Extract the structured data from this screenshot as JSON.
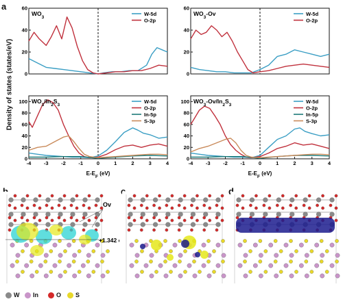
{
  "panel_labels": {
    "a": "a",
    "b": "b",
    "c": "c",
    "d": "d"
  },
  "y_axis_label": "Density of states (states/eV)",
  "colors": {
    "W-5d": "#3a9ec4",
    "O-2p": "#c0303c",
    "In-5p": "#1d7a78",
    "S-3p": "#c98a5a"
  },
  "chart_data": [
    {
      "type": "line",
      "title": "WO3",
      "xlabel": "",
      "ylabel": "",
      "xlim": [
        -4,
        4
      ],
      "ylim": [
        0,
        60
      ],
      "yticks": [
        0,
        20,
        40,
        60
      ],
      "xticks": [],
      "fermi_line": 0,
      "series": [
        {
          "name": "W-5d",
          "x": [
            -4,
            -3.5,
            -3,
            -2.5,
            -2,
            -1.5,
            -1,
            -0.5,
            0,
            0.3,
            0.8,
            1.3,
            1.8,
            2.3,
            2.8,
            3.1,
            3.4,
            3.7,
            4
          ],
          "y": [
            14,
            10,
            6,
            5,
            4,
            3,
            2,
            1,
            0,
            1,
            2,
            2,
            3,
            3,
            8,
            18,
            24,
            22,
            20
          ]
        },
        {
          "name": "O-2p",
          "x": [
            -4,
            -3.7,
            -3.4,
            -3,
            -2.7,
            -2.4,
            -2.1,
            -1.8,
            -1.5,
            -1.2,
            -0.9,
            -0.6,
            -0.3,
            0,
            0.5,
            1,
            1.5,
            2,
            2.5,
            3,
            3.5,
            4
          ],
          "y": [
            30,
            38,
            32,
            26,
            34,
            44,
            32,
            52,
            42,
            25,
            12,
            4,
            1,
            0,
            1,
            2,
            2,
            3,
            3,
            5,
            8,
            7
          ]
        }
      ]
    },
    {
      "type": "line",
      "title": "WO3-Ov",
      "xlabel": "",
      "ylabel": "",
      "xlim": [
        -4,
        4
      ],
      "ylim": [
        0,
        60
      ],
      "yticks": [
        0,
        20,
        40,
        60
      ],
      "xticks": [],
      "fermi_line": 0,
      "series": [
        {
          "name": "W-5d",
          "x": [
            -4,
            -3.5,
            -3,
            -2.5,
            -2,
            -1.5,
            -1,
            -0.5,
            0,
            0.5,
            1,
            1.5,
            2,
            2.5,
            3,
            3.5,
            4
          ],
          "y": [
            6,
            4,
            3,
            2,
            2,
            1,
            1,
            1,
            4,
            8,
            16,
            18,
            22,
            20,
            18,
            16,
            18
          ]
        },
        {
          "name": "O-2p",
          "x": [
            -4,
            -3.7,
            -3.4,
            -3.1,
            -2.8,
            -2.5,
            -2.2,
            -1.9,
            -1.6,
            -1.3,
            -1,
            -0.7,
            -0.4,
            0,
            0.5,
            1,
            1.5,
            2,
            2.5,
            3,
            3.5,
            4
          ],
          "y": [
            32,
            40,
            36,
            38,
            44,
            40,
            34,
            38,
            30,
            20,
            12,
            4,
            1,
            2,
            3,
            5,
            7,
            8,
            9,
            8,
            7,
            6
          ]
        }
      ]
    },
    {
      "type": "line",
      "title": "WO3/In2S3",
      "xlabel": "E-EF (eV)",
      "ylabel": "",
      "xlim": [
        -4,
        4
      ],
      "ylim": [
        0,
        110
      ],
      "yticks": [
        0,
        20,
        40,
        60,
        80,
        100
      ],
      "xticks": [
        -4,
        -3,
        -2,
        -1,
        0,
        1,
        2,
        3,
        4
      ],
      "fermi_line": 0,
      "series": [
        {
          "name": "W-5d",
          "x": [
            -4,
            -3.5,
            -3,
            -2.5,
            -2,
            -1.5,
            -1,
            -0.5,
            0,
            0.5,
            1,
            1.5,
            2,
            2.3,
            2.6,
            3,
            3.5,
            4
          ],
          "y": [
            10,
            8,
            6,
            5,
            4,
            3,
            3,
            2,
            5,
            15,
            30,
            46,
            54,
            50,
            45,
            42,
            36,
            38
          ]
        },
        {
          "name": "O-2p",
          "x": [
            -4,
            -3.8,
            -3.5,
            -3.2,
            -2.9,
            -2.6,
            -2.3,
            -2,
            -1.7,
            -1.4,
            -1.1,
            -0.8,
            -0.5,
            0,
            0.5,
            1,
            1.5,
            2,
            2.5,
            3,
            3.5,
            4
          ],
          "y": [
            65,
            55,
            75,
            95,
            103,
            98,
            85,
            60,
            40,
            22,
            10,
            4,
            2,
            3,
            8,
            16,
            22,
            24,
            20,
            24,
            26,
            22
          ]
        },
        {
          "name": "In-5p",
          "x": [
            -4,
            -3,
            -2,
            -1,
            0,
            1,
            2,
            3,
            4
          ],
          "y": [
            3,
            3,
            4,
            4,
            1,
            3,
            5,
            6,
            5
          ]
        },
        {
          "name": "S-3p",
          "x": [
            -4,
            -3.5,
            -3,
            -2.5,
            -2,
            -1.7,
            -1.4,
            -1.1,
            -0.8,
            -0.5,
            0,
            0.5,
            1,
            1.5,
            2,
            2.5,
            3,
            3.5,
            4
          ],
          "y": [
            15,
            20,
            22,
            30,
            38,
            40,
            30,
            18,
            8,
            4,
            2,
            3,
            4,
            5,
            6,
            7,
            8,
            8,
            7
          ]
        }
      ]
    },
    {
      "type": "line",
      "title": "WO3-Ov/In2S3",
      "xlabel": "E-EF (eV)",
      "ylabel": "",
      "xlim": [
        -4,
        4
      ],
      "ylim": [
        0,
        110
      ],
      "yticks": [
        0,
        20,
        40,
        60,
        80,
        100
      ],
      "xticks": [
        -4,
        -3,
        -2,
        -1,
        0,
        1,
        2,
        3,
        4
      ],
      "fermi_line": 0,
      "series": [
        {
          "name": "W-5d",
          "x": [
            -4,
            -3.5,
            -3,
            -2.5,
            -2,
            -1.5,
            -1,
            -0.5,
            0,
            0.5,
            1,
            1.5,
            2,
            2.3,
            2.6,
            3,
            3.5,
            4
          ],
          "y": [
            10,
            8,
            6,
            5,
            4,
            3,
            3,
            2,
            6,
            20,
            34,
            40,
            52,
            54,
            48,
            44,
            40,
            42
          ]
        },
        {
          "name": "O-2p",
          "x": [
            -4,
            -3.8,
            -3.5,
            -3.2,
            -2.9,
            -2.6,
            -2.3,
            -2,
            -1.7,
            -1.4,
            -1.1,
            -0.8,
            -0.5,
            0,
            0.5,
            1,
            1.5,
            2,
            2.5,
            3,
            3.5,
            4
          ],
          "y": [
            60,
            70,
            85,
            92,
            88,
            75,
            60,
            40,
            25,
            15,
            8,
            3,
            2,
            4,
            10,
            18,
            22,
            28,
            24,
            26,
            22,
            18
          ]
        },
        {
          "name": "In-5p",
          "x": [
            -4,
            -3,
            -2,
            -1,
            0,
            1,
            2,
            3,
            4
          ],
          "y": [
            3,
            3,
            4,
            4,
            1,
            4,
            6,
            6,
            5
          ]
        },
        {
          "name": "S-3p",
          "x": [
            -4,
            -3.5,
            -3,
            -2.5,
            -2,
            -1.7,
            -1.4,
            -1.1,
            -0.8,
            -0.5,
            0,
            0.5,
            1,
            1.5,
            2,
            2.5,
            3,
            3.5,
            4
          ],
          "y": [
            12,
            18,
            22,
            28,
            34,
            36,
            28,
            15,
            6,
            3,
            2,
            3,
            4,
            5,
            6,
            7,
            8,
            8,
            7
          ]
        }
      ]
    }
  ],
  "panel_b": {
    "ov_label": "Ov",
    "charge_label": "+1.342 e⁻"
  },
  "legend_atoms": [
    {
      "symbol": "W",
      "color": "#8a8a8a"
    },
    {
      "symbol": "In",
      "color": "#c995c9"
    },
    {
      "symbol": "O",
      "color": "#d42a2a"
    },
    {
      "symbol": "S",
      "color": "#e8d82a"
    }
  ]
}
